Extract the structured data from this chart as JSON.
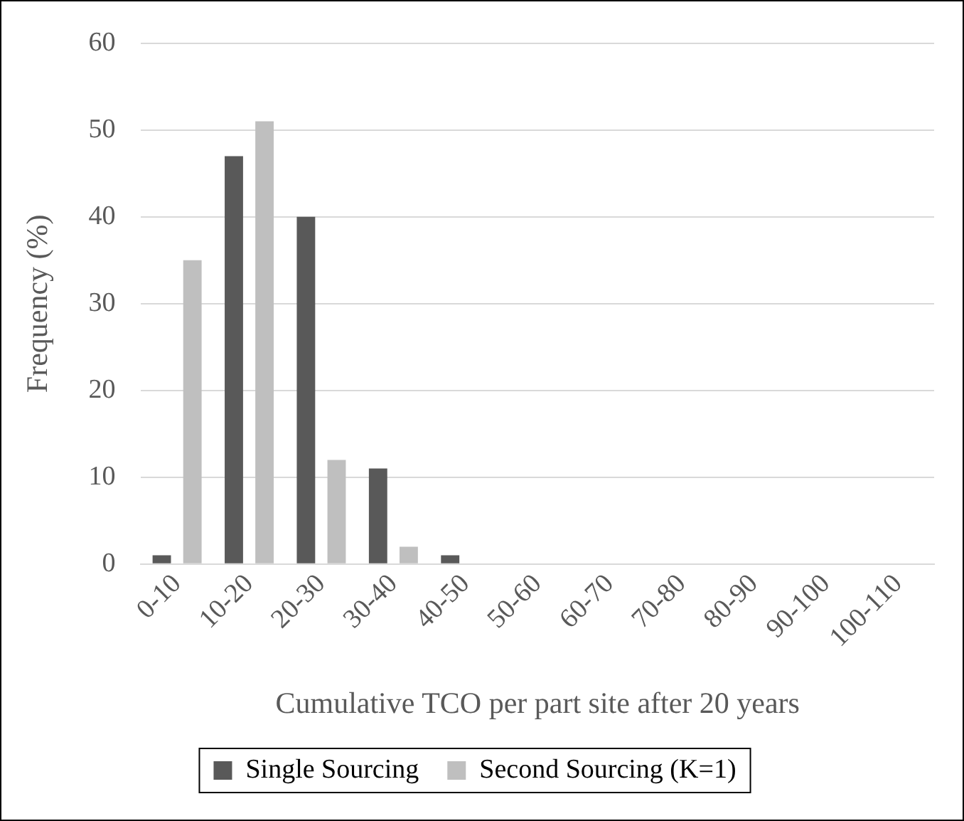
{
  "chart_data": {
    "type": "bar",
    "xlabel": "Cumulative TCO per part site after 20 years",
    "ylabel": "Frequency (%)",
    "categories": [
      "0-10",
      "10-20",
      "20-30",
      "30-40",
      "40-50",
      "50-60",
      "60-70",
      "70-80",
      "80-90",
      "90-100",
      "100-110"
    ],
    "series": [
      {
        "name": "Single Sourcing",
        "color": "#595959",
        "values": [
          1,
          47,
          40,
          11,
          1,
          0,
          0,
          0,
          0,
          0,
          0
        ]
      },
      {
        "name": "Second Sourcing (K=1)",
        "color": "#bfbfbf",
        "values": [
          35,
          51,
          12,
          2,
          0,
          0,
          0,
          0,
          0,
          0,
          0
        ]
      }
    ],
    "ylim": [
      0,
      60
    ],
    "yticks": [
      0,
      10,
      20,
      30,
      40,
      50,
      60
    ],
    "grid": "y",
    "legend": "bottom"
  }
}
